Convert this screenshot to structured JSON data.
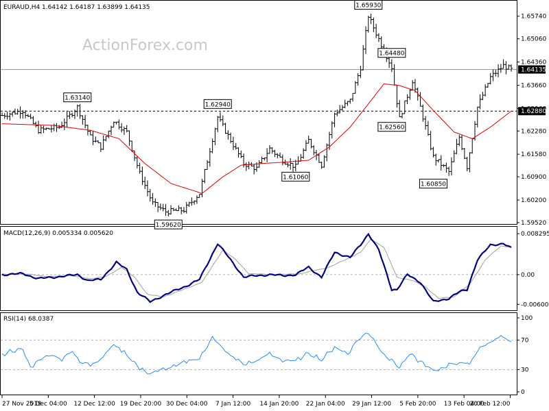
{
  "watermark": "ActionForex.com",
  "chart_data": [
    {
      "type": "ohlc",
      "title": "EURAUD,H4  1.64142 1.64187 1.63899 1.64135",
      "ylim": [
        1.5952,
        1.6594
      ],
      "y_ticks": [
        "1.65740",
        "1.65060",
        "1.64360",
        "1.63660",
        "1.62960",
        "1.62280",
        "1.61580",
        "1.60900",
        "1.60200",
        "1.59520"
      ],
      "current_price": "1.64135",
      "reference_level": "1.62880",
      "x_ticks": [
        "27 Nov 2019",
        "5 Dec 04:00",
        "12 Dec 12:00",
        "19 Dec 20:00",
        "30 Dec 04:00",
        "7 Jan 12:00",
        "14 Jan 20:00",
        "22 Jan 04:00",
        "29 Jan 12:00",
        "5 Feb 20:00",
        "13 Feb 04:00",
        "20 Feb 12:00"
      ],
      "colors": {
        "price": "#000000",
        "moving_average": "#e00000",
        "grid": "#b0b0b0"
      },
      "annotations": [
        {
          "label": "1.63140",
          "bar": 29,
          "price": 1.6314
        },
        {
          "label": "1.59620",
          "bar": 64,
          "price": 1.5962
        },
        {
          "label": "1.62940",
          "bar": 83,
          "price": 1.6294
        },
        {
          "label": "1.61060",
          "bar": 113,
          "price": 1.6106
        },
        {
          "label": "1.65930",
          "bar": 141,
          "price": 1.6593
        },
        {
          "label": "1.64480",
          "bar": 150,
          "price": 1.6448
        },
        {
          "label": "1.62560",
          "bar": 150,
          "price": 1.6256
        },
        {
          "label": "1.60850",
          "bar": 166,
          "price": 1.6085
        }
      ],
      "close_path": [
        [
          0,
          1.6275
        ],
        [
          8,
          1.629
        ],
        [
          14,
          1.623
        ],
        [
          22,
          1.624
        ],
        [
          29,
          1.63
        ],
        [
          34,
          1.621
        ],
        [
          38,
          1.618
        ],
        [
          43,
          1.626
        ],
        [
          48,
          1.6225
        ],
        [
          53,
          1.61
        ],
        [
          58,
          1.601
        ],
        [
          63,
          1.5985
        ],
        [
          70,
          1.599
        ],
        [
          76,
          1.604
        ],
        [
          83,
          1.627
        ],
        [
          88,
          1.62
        ],
        [
          93,
          1.613
        ],
        [
          98,
          1.6115
        ],
        [
          103,
          1.6175
        ],
        [
          108,
          1.614
        ],
        [
          113,
          1.612
        ],
        [
          118,
          1.62
        ],
        [
          123,
          1.6125
        ],
        [
          128,
          1.628
        ],
        [
          134,
          1.632
        ],
        [
          138,
          1.642
        ],
        [
          141,
          1.6575
        ],
        [
          145,
          1.6505
        ],
        [
          150,
          1.642
        ],
        [
          153,
          1.6265
        ],
        [
          158,
          1.638
        ],
        [
          161,
          1.63
        ],
        [
          166,
          1.615
        ],
        [
          172,
          1.6105
        ],
        [
          176,
          1.621
        ],
        [
          179,
          1.612
        ],
        [
          183,
          1.63
        ],
        [
          188,
          1.639
        ],
        [
          193,
          1.6425
        ],
        [
          196,
          1.6413
        ]
      ],
      "ma_path": [
        [
          0,
          1.625
        ],
        [
          20,
          1.6245
        ],
        [
          34,
          1.623
        ],
        [
          45,
          1.6205
        ],
        [
          55,
          1.613
        ],
        [
          65,
          1.607
        ],
        [
          77,
          1.604
        ],
        [
          85,
          1.609
        ],
        [
          92,
          1.6125
        ],
        [
          100,
          1.613
        ],
        [
          110,
          1.6135
        ],
        [
          118,
          1.614
        ],
        [
          126,
          1.618
        ],
        [
          134,
          1.624
        ],
        [
          141,
          1.631
        ],
        [
          147,
          1.637
        ],
        [
          153,
          1.6365
        ],
        [
          159,
          1.635
        ],
        [
          166,
          1.629
        ],
        [
          174,
          1.6225
        ],
        [
          181,
          1.6205
        ],
        [
          188,
          1.624
        ],
        [
          196,
          1.6288
        ]
      ]
    },
    {
      "type": "line",
      "title": "MACD(12,26,9) 0.005334 0.005620",
      "ylim": [
        -0.0068,
        0.009
      ],
      "y_ticks": [
        "0.008295",
        "0.00",
        "-0.006007"
      ],
      "colors": {
        "macd": "#000080",
        "signal": "#a0a0a0"
      },
      "macd_path": [
        [
          0,
          0.0
        ],
        [
          8,
          0.0002
        ],
        [
          14,
          -0.0008
        ],
        [
          22,
          -0.0004
        ],
        [
          29,
          0.0
        ],
        [
          33,
          -0.0012
        ],
        [
          38,
          -0.001
        ],
        [
          44,
          0.0025
        ],
        [
          48,
          0.001
        ],
        [
          52,
          -0.0035
        ],
        [
          57,
          -0.0055
        ],
        [
          63,
          -0.004
        ],
        [
          70,
          -0.0025
        ],
        [
          76,
          -0.001
        ],
        [
          83,
          0.0063
        ],
        [
          88,
          0.003
        ],
        [
          93,
          -0.0005
        ],
        [
          98,
          -0.0002
        ],
        [
          103,
          0.0
        ],
        [
          108,
          -0.0002
        ],
        [
          113,
          0.0
        ],
        [
          118,
          0.0015
        ],
        [
          123,
          -0.0005
        ],
        [
          128,
          0.0045
        ],
        [
          134,
          0.0035
        ],
        [
          138,
          0.006
        ],
        [
          141,
          0.0083
        ],
        [
          145,
          0.005
        ],
        [
          150,
          -0.003
        ],
        [
          152,
          -0.003
        ],
        [
          156,
          0.0
        ],
        [
          161,
          -0.0015
        ],
        [
          166,
          -0.0055
        ],
        [
          172,
          -0.0048
        ],
        [
          176,
          -0.0035
        ],
        [
          179,
          -0.003
        ],
        [
          183,
          0.003
        ],
        [
          188,
          0.006
        ],
        [
          193,
          0.0063
        ],
        [
          196,
          0.0053
        ]
      ],
      "signal_path": [
        [
          0,
          0.0001
        ],
        [
          10,
          0.0001
        ],
        [
          18,
          -0.0004
        ],
        [
          26,
          -0.0002
        ],
        [
          34,
          -0.0008
        ],
        [
          40,
          -0.0004
        ],
        [
          46,
          0.0015
        ],
        [
          51,
          -0.0005
        ],
        [
          56,
          -0.004
        ],
        [
          62,
          -0.0045
        ],
        [
          70,
          -0.003
        ],
        [
          77,
          -0.0015
        ],
        [
          85,
          0.005
        ],
        [
          90,
          0.003
        ],
        [
          95,
          0.0002
        ],
        [
          105,
          0.0
        ],
        [
          115,
          0.0002
        ],
        [
          120,
          0.0008
        ],
        [
          126,
          0.0015
        ],
        [
          132,
          0.003
        ],
        [
          138,
          0.0045
        ],
        [
          142,
          0.0072
        ],
        [
          147,
          0.0055
        ],
        [
          152,
          -0.0005
        ],
        [
          158,
          -0.0012
        ],
        [
          163,
          -0.0025
        ],
        [
          168,
          -0.0048
        ],
        [
          174,
          -0.0045
        ],
        [
          180,
          -0.002
        ],
        [
          186,
          0.003
        ],
        [
          192,
          0.0058
        ],
        [
          196,
          0.0056
        ]
      ]
    },
    {
      "type": "line",
      "title": "RSI(14) 68.0387",
      "ylim": [
        0,
        100
      ],
      "y_ticks": [
        "100",
        "70",
        "30",
        "0"
      ],
      "levels": [
        70,
        30
      ],
      "colors": {
        "rsi": "#1e90ff"
      },
      "rsi_path": [
        [
          0,
          50
        ],
        [
          4,
          55
        ],
        [
          8,
          58
        ],
        [
          11,
          32
        ],
        [
          15,
          45
        ],
        [
          19,
          52
        ],
        [
          23,
          42
        ],
        [
          27,
          56
        ],
        [
          30,
          42
        ],
        [
          34,
          36
        ],
        [
          38,
          45
        ],
        [
          43,
          63
        ],
        [
          48,
          52
        ],
        [
          53,
          30
        ],
        [
          57,
          26
        ],
        [
          63,
          30
        ],
        [
          70,
          40
        ],
        [
          76,
          45
        ],
        [
          81,
          75
        ],
        [
          84,
          60
        ],
        [
          88,
          50
        ],
        [
          93,
          36
        ],
        [
          98,
          43
        ],
        [
          103,
          50
        ],
        [
          108,
          44
        ],
        [
          113,
          40
        ],
        [
          118,
          54
        ],
        [
          123,
          42
        ],
        [
          128,
          62
        ],
        [
          133,
          50
        ],
        [
          137,
          72
        ],
        [
          141,
          80
        ],
        [
          145,
          60
        ],
        [
          150,
          42
        ],
        [
          153,
          32
        ],
        [
          157,
          52
        ],
        [
          161,
          40
        ],
        [
          166,
          28
        ],
        [
          172,
          36
        ],
        [
          176,
          40
        ],
        [
          180,
          38
        ],
        [
          184,
          60
        ],
        [
          188,
          68
        ],
        [
          192,
          74
        ],
        [
          196,
          68
        ]
      ]
    }
  ]
}
